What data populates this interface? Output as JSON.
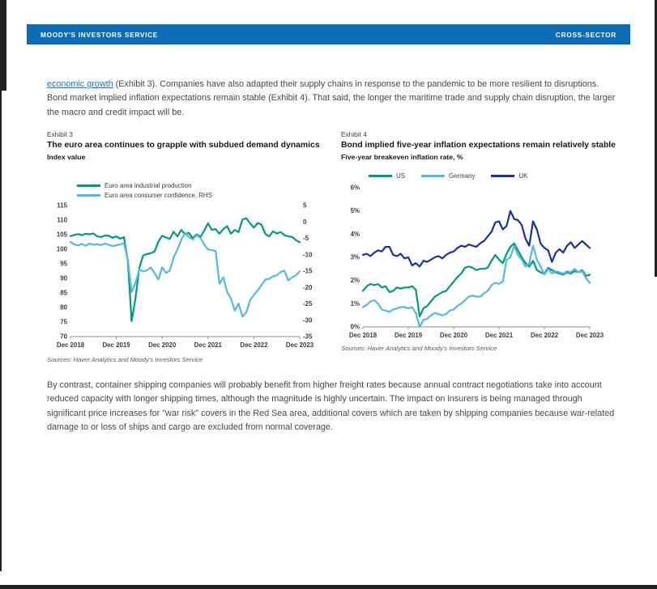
{
  "header": {
    "left": "MOODY'S INVESTORS SERVICE",
    "right": "CROSS-SECTOR"
  },
  "paragraphs": {
    "intro_link": "economic growth",
    "intro_rest": " (Exhibit 3). Companies have also adapted their supply chains in response to the pandemic to be more resilient to disruptions. Bond market implied inflation expectations remain stable (Exhibit 4). That said, the longer the maritime trade and supply chain disruption, the larger the macro and credit impact will be.",
    "body": "By contrast, container shipping companies will probably benefit from higher freight rates because annual contract negotiations take into account reduced capacity with longer shipping times, although the magnitude is highly uncertain. The impact on insurers is being managed through significant price increases for \"war risk\" covers in the Red Sea area, additional covers which are taken by shipping companies because war-related damage to or loss of ships and cargo are excluded from normal coverage."
  },
  "colors": {
    "header_bar": "#0c6cb6",
    "link": "#1577bd",
    "green_series": "#009c77",
    "light_blue_series": "#54b8e4",
    "dark_blue_series": "#16349c"
  },
  "chart_data": [
    {
      "type": "line",
      "exhibit": "Exhibit 3",
      "title": "The euro area continues to grapple with subdued demand dynamics",
      "subtitle": "Index value",
      "sources": "Sources: Haver Analytics and Moody's Investors Service",
      "legend_position": "top-left-stacked",
      "grid": false,
      "x_ticklabels": [
        "Dec 2018",
        "Dec 2019",
        "Dec 2020",
        "Dec 2021",
        "Dec 2022",
        "Dec 2023"
      ],
      "left_axis": {
        "min": 70,
        "max": 115,
        "ticks": [
          115,
          110,
          105,
          100,
          95,
          90,
          85,
          80,
          75,
          70
        ],
        "suffix": ""
      },
      "right_axis": {
        "min": -35,
        "max": 5,
        "ticks": [
          5,
          0,
          -5,
          -10,
          -15,
          -20,
          -25,
          -30,
          -35
        ],
        "suffix": ""
      },
      "series": [
        {
          "name": "Euro area industrial production",
          "color": "#009c77",
          "scale": "left",
          "values": [
            104.5,
            104.9,
            105.2,
            104.8,
            105.3,
            105.1,
            105.4,
            104.4,
            104.2,
            104.7,
            104.6,
            103.9,
            104.4,
            103.6,
            104.1,
            96.0,
            75.3,
            83.0,
            93.5,
            97.8,
            98.3,
            98.6,
            99.2,
            102.6,
            104.6,
            104.0,
            103.5,
            106.0,
            104.4,
            106.6,
            105.1,
            105.6,
            103.8,
            105.1,
            104.2,
            106.4,
            108.9,
            106.6,
            106.9,
            105.3,
            106.9,
            107.9,
            105.3,
            106.6,
            105.9,
            110.2,
            110.6,
            108.9,
            107.4,
            109.0,
            108.4,
            105.2,
            104.4,
            106.1,
            105.4,
            105.9,
            104.8,
            104.4,
            104.2,
            103.1,
            102.4
          ]
        },
        {
          "name": "Euro area consumer confidence, RHS",
          "color": "#54b8e4",
          "scale": "right",
          "values": [
            -6.1,
            -6.9,
            -7.2,
            -6.7,
            -7.3,
            -6.6,
            -7.0,
            -6.8,
            -7.1,
            -6.6,
            -7.0,
            -7.4,
            -7.1,
            -6.9,
            -6.5,
            -11.6,
            -21.4,
            -18.6,
            -14.6,
            -15.1,
            -14.8,
            -13.9,
            -15.6,
            -17.6,
            -13.9,
            -15.6,
            -14.9,
            -10.9,
            -8.4,
            -5.4,
            -3.4,
            -4.6,
            -5.4,
            -4.1,
            -4.9,
            -6.9,
            -8.4,
            -8.6,
            -8.9,
            -18.9,
            -16.9,
            -21.4,
            -23.4,
            -27.1,
            -24.9,
            -28.9,
            -27.6,
            -23.9,
            -22.3,
            -20.9,
            -19.3,
            -17.6,
            -17.4,
            -16.6,
            -16.3,
            -15.3,
            -14.9,
            -17.9,
            -16.9,
            -16.3,
            -15.1
          ]
        }
      ]
    },
    {
      "type": "line",
      "exhibit": "Exhibit 4",
      "title": "Bond implied five-year inflation expectations remain relatively stable",
      "subtitle": "Five-year breakeven inflation rate, %",
      "sources": "Sources: Haver Analytics and Moody's Investors Service",
      "legend_position": "top-left-row",
      "grid": false,
      "x_ticklabels": [
        "Dec 2018",
        "Dec 2019",
        "Dec 2020",
        "Dec 2021",
        "Dec 2022",
        "Dec 2023"
      ],
      "left_axis": {
        "min": 0,
        "max": 6,
        "ticks": [
          6,
          5,
          4,
          3,
          2,
          1,
          0
        ],
        "suffix": "%"
      },
      "series": [
        {
          "name": "US",
          "color": "#009c77",
          "scale": "left",
          "values": [
            1.55,
            1.75,
            1.85,
            1.8,
            1.85,
            1.7,
            1.75,
            1.5,
            1.55,
            1.7,
            1.65,
            1.7,
            1.7,
            1.75,
            1.6,
            0.45,
            0.8,
            0.9,
            1.1,
            1.3,
            1.4,
            1.5,
            1.55,
            1.75,
            1.95,
            2.15,
            2.3,
            2.55,
            2.6,
            2.55,
            2.45,
            2.5,
            2.5,
            2.55,
            2.85,
            3.1,
            2.9,
            2.75,
            3.15,
            3.45,
            3.6,
            3.3,
            3.0,
            2.75,
            2.6,
            2.85,
            2.45,
            2.35,
            2.3,
            2.55,
            2.45,
            2.35,
            2.3,
            2.25,
            2.35,
            2.3,
            2.4,
            2.35,
            2.45,
            2.2,
            2.25
          ]
        },
        {
          "name": "Germany",
          "color": "#54b8e4",
          "scale": "left",
          "values": [
            0.85,
            0.95,
            1.1,
            1.15,
            1.0,
            0.75,
            0.7,
            0.65,
            0.75,
            0.8,
            0.85,
            0.85,
            0.8,
            0.85,
            0.6,
            0.0,
            0.3,
            0.35,
            0.5,
            0.6,
            0.55,
            0.5,
            0.55,
            0.7,
            0.75,
            0.9,
            1.0,
            1.15,
            1.3,
            1.35,
            1.3,
            1.3,
            1.45,
            1.55,
            1.8,
            1.9,
            1.85,
            1.95,
            2.9,
            3.0,
            3.5,
            3.1,
            2.9,
            2.6,
            2.75,
            3.5,
            2.9,
            2.6,
            2.25,
            2.5,
            2.3,
            2.4,
            2.35,
            2.3,
            2.4,
            2.35,
            2.5,
            2.35,
            2.4,
            2.1,
            1.9
          ]
        },
        {
          "name": "UK",
          "color": "#16349c",
          "scale": "left",
          "values": [
            3.1,
            3.15,
            3.05,
            3.2,
            3.3,
            3.25,
            3.45,
            3.45,
            3.1,
            3.05,
            3.15,
            2.95,
            3.0,
            2.65,
            2.75,
            2.6,
            2.85,
            2.8,
            2.9,
            3.0,
            3.05,
            2.95,
            3.1,
            3.2,
            3.25,
            3.4,
            3.5,
            3.45,
            3.55,
            3.5,
            3.45,
            3.6,
            3.7,
            3.9,
            4.1,
            4.5,
            4.55,
            4.2,
            4.35,
            5.0,
            4.65,
            4.6,
            4.4,
            3.8,
            3.5,
            4.55,
            4.2,
            3.6,
            3.4,
            3.3,
            2.8,
            3.2,
            3.35,
            3.2,
            3.5,
            3.65,
            3.4,
            3.55,
            3.7,
            3.55,
            3.4
          ]
        }
      ]
    }
  ]
}
